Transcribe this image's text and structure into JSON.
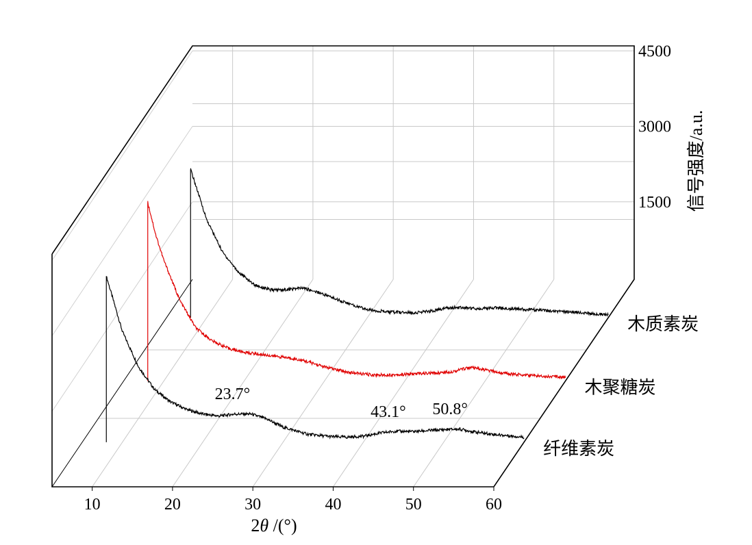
{
  "chart_data": {
    "type": "line",
    "chart_style": "3d-waterfall",
    "xlabel_main": "2",
    "xlabel_theta": "θ",
    "xlabel_unit": " /(°)",
    "ylabel": "信号强度/a.u.",
    "xlim": [
      5,
      60
    ],
    "x_ticks": [
      "10",
      "20",
      "30",
      "40",
      "50",
      "60"
    ],
    "y_ticks": [
      "1500",
      "3000",
      "4500"
    ],
    "grid": true,
    "series": [
      {
        "name": "纤维素炭",
        "color": "#000000",
        "start_x": 8,
        "x": [
          8,
          9,
          10,
          12,
          14,
          16,
          18,
          20,
          22,
          24,
          26,
          28,
          30,
          33,
          36,
          38,
          40,
          42,
          44,
          46,
          48,
          50,
          52,
          54,
          56,
          58,
          60
        ],
        "values": [
          3300,
          2750,
          2200,
          1500,
          1050,
          800,
          650,
          560,
          520,
          560,
          560,
          460,
          300,
          160,
          110,
          100,
          120,
          180,
          220,
          210,
          230,
          250,
          260,
          200,
          160,
          130,
          100
        ]
      },
      {
        "name": "木聚糖炭",
        "color": "#e00000",
        "start_x": 8,
        "x": [
          8,
          9,
          10,
          12,
          14,
          16,
          18,
          20,
          22,
          24,
          26,
          28,
          30,
          33,
          36,
          38,
          40,
          42,
          44,
          46,
          48,
          50,
          52,
          54,
          56,
          58,
          60
        ],
        "values": [
          3550,
          2900,
          2400,
          1600,
          1050,
          800,
          650,
          570,
          530,
          490,
          450,
          380,
          280,
          170,
          120,
          120,
          130,
          150,
          160,
          190,
          270,
          220,
          160,
          130,
          110,
          90,
          80
        ]
      },
      {
        "name": "木质素炭",
        "color": "#000000",
        "start_x": 8,
        "x": [
          8,
          9,
          10,
          12,
          14,
          16,
          18,
          20,
          22,
          24,
          26,
          28,
          30,
          33,
          36,
          38,
          40,
          42,
          44,
          46,
          48,
          50,
          52,
          54,
          56,
          58,
          60
        ],
        "values": [
          2950,
          2450,
          1950,
          1300,
          900,
          650,
          550,
          560,
          590,
          500,
          380,
          260,
          160,
          110,
          100,
          130,
          200,
          200,
          180,
          200,
          180,
          160,
          150,
          120,
          110,
          80,
          60
        ]
      }
    ],
    "annotations": [
      {
        "text": "23.7°",
        "series": 0,
        "x": 23.7
      },
      {
        "text": "43.1°",
        "series": 0,
        "x": 43.1
      },
      {
        "text": "50.8°",
        "series": 0,
        "x": 50.8
      }
    ]
  }
}
